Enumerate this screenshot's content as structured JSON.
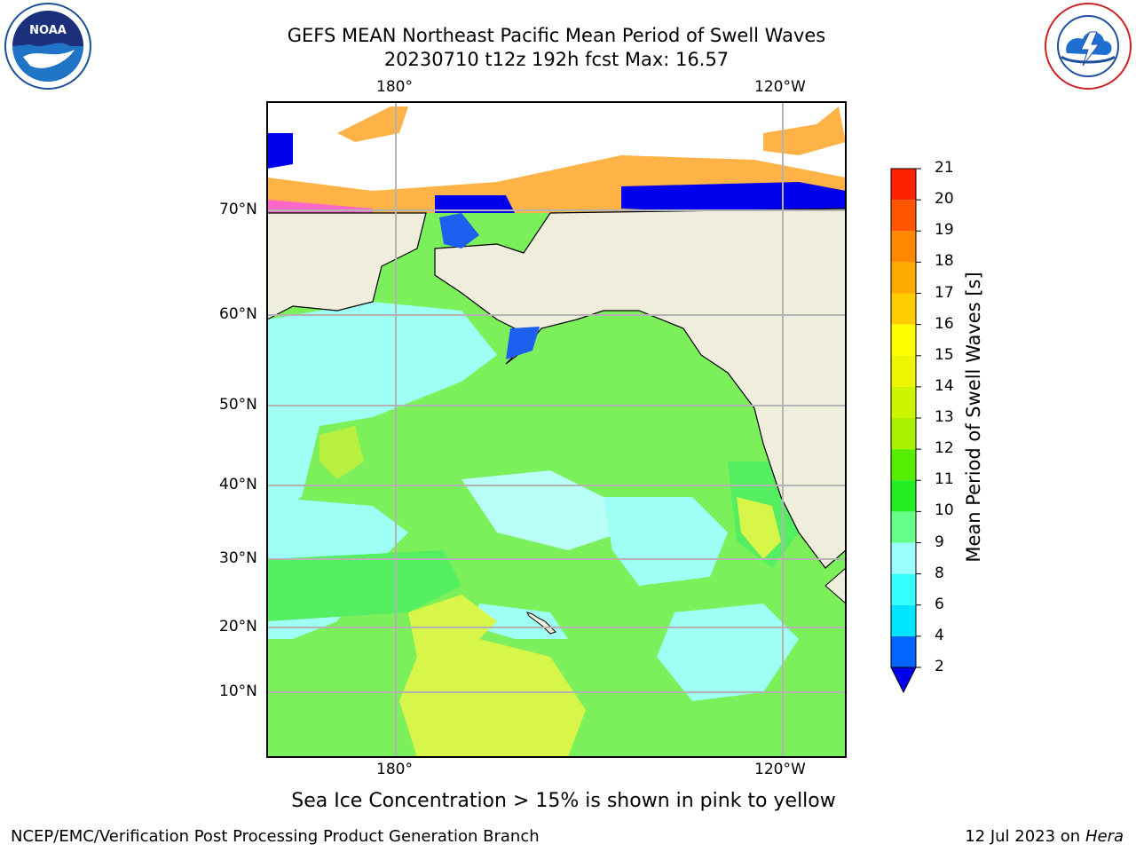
{
  "title_line1": "GEFS MEAN Northeast Pacific Mean Period of Swell Waves",
  "title_line2": "20230710 t12z 192h fcst   Max: 16.57",
  "caption": "Sea Ice Concentration > 15% is shown in pink to yellow",
  "footer_left": "NCEP/EMC/Verification Post Processing Product Generation Branch",
  "footer_date": "12 Jul 2023 on ",
  "footer_host": "Hera",
  "logos": {
    "left": "NOAA",
    "right": "NATIONAL WEATHER SERVICE"
  },
  "map": {
    "lon_labels_top": [
      "180°",
      "120°W"
    ],
    "lon_labels_bottom": [
      "180°",
      "120°W"
    ],
    "lat_labels": [
      "70°N",
      "60°N",
      "50°N",
      "40°N",
      "30°N",
      "20°N",
      "10°N"
    ],
    "colors": {
      "land": "#efeddc",
      "ocean_green": "#7cf05a",
      "ocean_light": "#9ffff5",
      "warm": "#d8f54a"
    }
  },
  "colorbar": {
    "label": "Mean Period of Swell Waves [s]",
    "ticks": [
      "2",
      "4",
      "6",
      "8",
      "9",
      "10",
      "11",
      "12",
      "13",
      "14",
      "15",
      "16",
      "17",
      "18",
      "19",
      "20",
      "21"
    ],
    "colors": [
      "#0066ff",
      "#00e5ff",
      "#33ffff",
      "#99ffff",
      "#66ff88",
      "#22ee22",
      "#55ee00",
      "#aaf000",
      "#ccf500",
      "#eef500",
      "#ffff00",
      "#ffcc00",
      "#ffaa00",
      "#ff8800",
      "#ff5500",
      "#ff2200",
      "#ff0000"
    ],
    "extend_color": "#0000ee"
  }
}
